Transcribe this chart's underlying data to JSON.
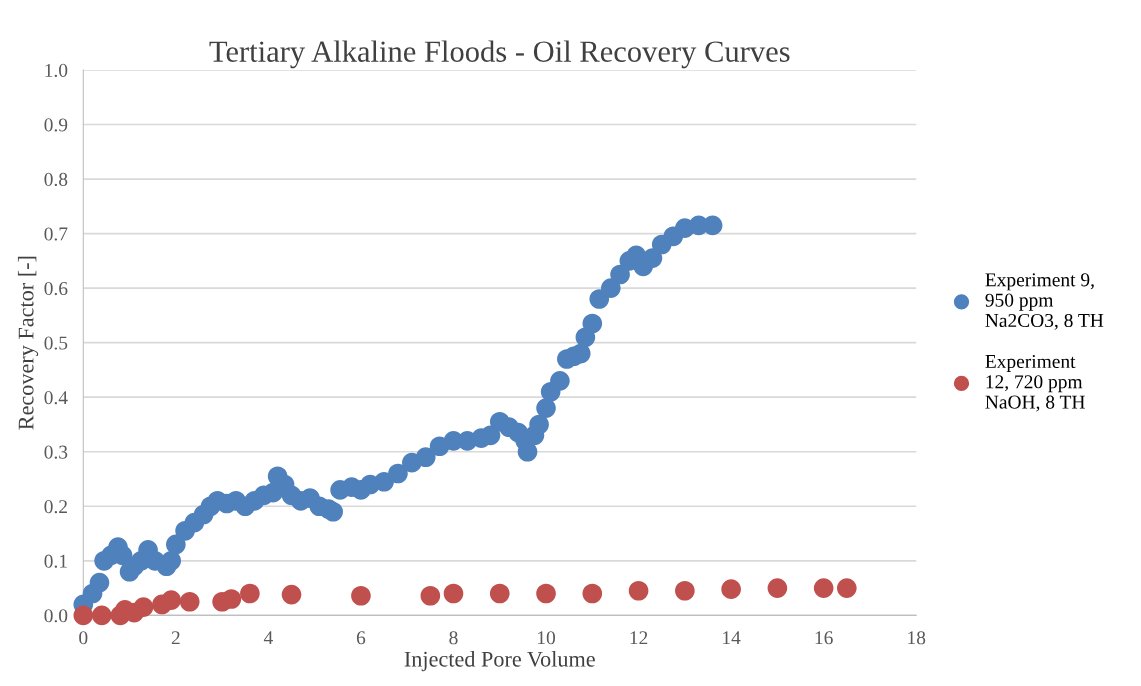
{
  "chart_data": {
    "type": "scatter",
    "title": "Tertiary Alkaline Floods - Oil Recovery Curves",
    "xlabel": "Injected Pore Volume",
    "ylabel": "Recovery Factor [-]",
    "xlim": [
      0,
      18
    ],
    "xticks": [
      0,
      2,
      4,
      6,
      8,
      10,
      12,
      14,
      16,
      18
    ],
    "ylim": [
      0,
      1
    ],
    "yticks": [
      {
        "value": 0,
        "label": "0.0"
      },
      {
        "value": 0.1,
        "label": "0.1"
      },
      {
        "value": 0.2,
        "label": "0.2"
      },
      {
        "value": 0.3,
        "label": "0.3"
      },
      {
        "value": 0.4,
        "label": "0.4"
      },
      {
        "value": 0.5,
        "label": "0.5"
      },
      {
        "value": 0.6,
        "label": "0.6"
      },
      {
        "value": 0.7,
        "label": "0.7"
      },
      {
        "value": 0.8,
        "label": "0.8"
      },
      {
        "value": 0.9,
        "label": "0.9"
      },
      {
        "value": 1,
        "label": "1.0"
      }
    ],
    "grid": "y",
    "legend": "right",
    "marker": "circle",
    "series": [
      {
        "name": "Experiment 9, 950 ppm Na2CO3, 8 TH",
        "color": "#4f81bd",
        "x": [
          0,
          0.2,
          0.35,
          0.45,
          0.6,
          0.75,
          0.85,
          1.0,
          1.1,
          1.25,
          1.4,
          1.55,
          1.8,
          1.9,
          2.0,
          2.2,
          2.4,
          2.6,
          2.75,
          2.9,
          3.1,
          3.3,
          3.5,
          3.7,
          3.9,
          4.1,
          4.2,
          4.35,
          4.5,
          4.7,
          4.9,
          5.1,
          5.3,
          5.4,
          5.55,
          5.8,
          6.0,
          6.2,
          6.5,
          6.8,
          7.1,
          7.4,
          7.7,
          8.0,
          8.3,
          8.6,
          8.8,
          9.0,
          9.2,
          9.4,
          9.55,
          9.6,
          9.75,
          9.85,
          10.0,
          10.1,
          10.3,
          10.45,
          10.6,
          10.75,
          10.85,
          11.0,
          11.15,
          11.4,
          11.6,
          11.8,
          11.95,
          12.1,
          12.3,
          12.5,
          12.75,
          13.0,
          13.3,
          13.6
        ],
        "values": [
          0.02,
          0.04,
          0.06,
          0.1,
          0.11,
          0.125,
          0.11,
          0.08,
          0.09,
          0.1,
          0.12,
          0.1,
          0.09,
          0.1,
          0.13,
          0.155,
          0.17,
          0.185,
          0.2,
          0.21,
          0.205,
          0.21,
          0.2,
          0.21,
          0.22,
          0.225,
          0.255,
          0.24,
          0.22,
          0.21,
          0.215,
          0.2,
          0.195,
          0.19,
          0.23,
          0.235,
          0.23,
          0.24,
          0.245,
          0.26,
          0.28,
          0.29,
          0.31,
          0.32,
          0.32,
          0.325,
          0.33,
          0.355,
          0.345,
          0.335,
          0.32,
          0.3,
          0.33,
          0.35,
          0.38,
          0.41,
          0.43,
          0.47,
          0.475,
          0.48,
          0.51,
          0.535,
          0.58,
          0.6,
          0.625,
          0.65,
          0.66,
          0.64,
          0.655,
          0.68,
          0.695,
          0.71,
          0.715,
          0.715
        ]
      },
      {
        "name": "Experiment 12, 720 ppm NaOH, 8 TH",
        "color": "#c0504d",
        "x": [
          0,
          0.4,
          0.8,
          0.9,
          1.1,
          1.3,
          1.7,
          1.9,
          2.3,
          3.0,
          3.2,
          3.6,
          4.5,
          6,
          7.5,
          8,
          9,
          10,
          11,
          12,
          13,
          14,
          15,
          16,
          16.5
        ],
        "values": [
          0,
          0,
          0,
          0.01,
          0.005,
          0.015,
          0.02,
          0.028,
          0.025,
          0.025,
          0.03,
          0.04,
          0.038,
          0.036,
          0.036,
          0.04,
          0.04,
          0.04,
          0.04,
          0.045,
          0.045,
          0.048,
          0.05,
          0.05,
          0.05
        ]
      }
    ]
  }
}
